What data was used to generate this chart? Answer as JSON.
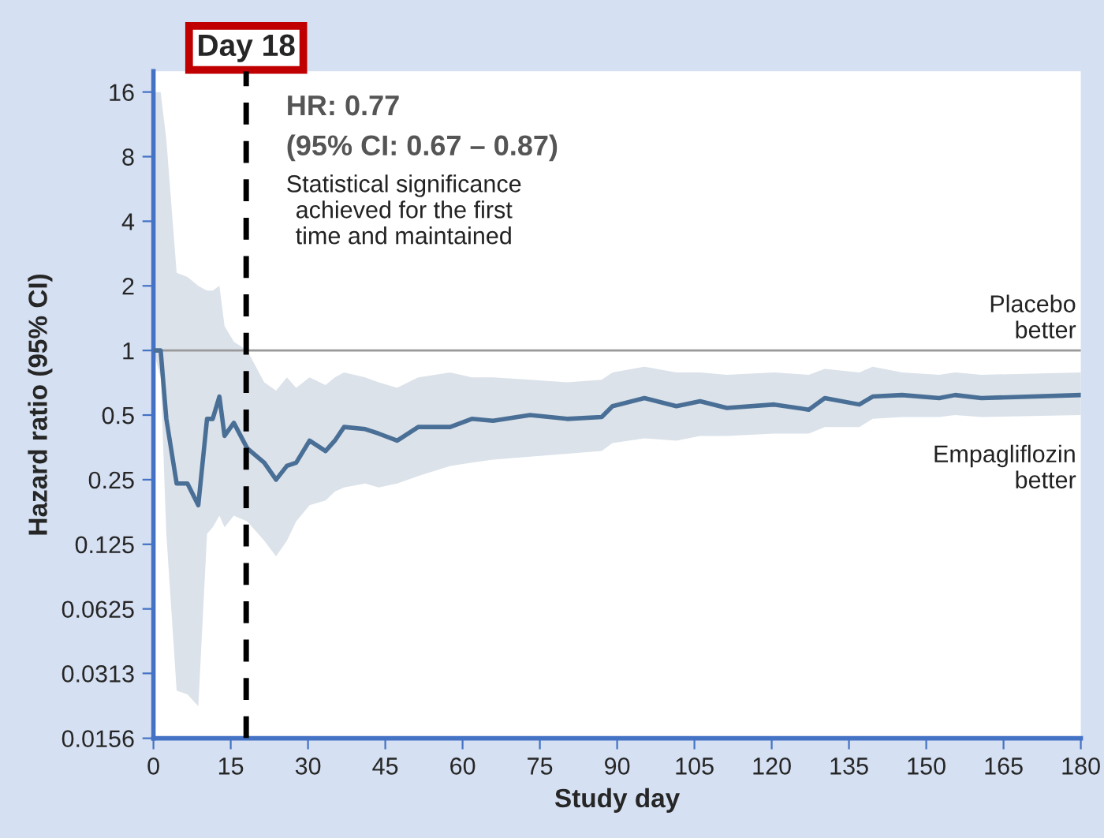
{
  "chart_data": {
    "type": "line",
    "xlabel": "Study day",
    "ylabel": "Hazard ratio (95% CI)",
    "log": "y",
    "xlim": [
      0,
      180
    ],
    "xticks": [
      0,
      15,
      30,
      45,
      60,
      75,
      90,
      105,
      120,
      135,
      150,
      165,
      180
    ],
    "ylim": [
      0.0156,
      20
    ],
    "yticks": [
      0.0156,
      0.0313,
      0.0625,
      0.125,
      0.25,
      0.5,
      1,
      2,
      4,
      8,
      16
    ],
    "grid": false,
    "legend": false,
    "marker": "none",
    "line_style": "solid",
    "series": [
      {
        "color": "#4a6f96",
        "x": [
          0,
          1.4,
          2.5,
          4.5,
          6.6,
          8.7,
          10.4,
          11.5,
          12.8,
          13.8,
          15.6,
          18.2,
          21.5,
          23.8,
          25.9,
          27.7,
          30.3,
          33.4,
          35.2,
          37,
          41.1,
          43.7,
          47.3,
          51.4,
          57.6,
          61.8,
          65.9,
          73.1,
          80.3,
          87,
          89.1,
          95.3,
          101.5,
          106.1,
          111.3,
          120.5,
          127.2,
          130.3,
          137,
          139.6,
          145.3,
          152.5,
          155.6,
          160.7,
          180
        ],
        "values": [
          1,
          1,
          0.48,
          0.24,
          0.24,
          0.19,
          0.48,
          0.48,
          0.61,
          0.4,
          0.46,
          0.35,
          0.3,
          0.25,
          0.29,
          0.3,
          0.38,
          0.34,
          0.38,
          0.44,
          0.43,
          0.41,
          0.38,
          0.44,
          0.44,
          0.48,
          0.47,
          0.5,
          0.48,
          0.49,
          0.55,
          0.6,
          0.55,
          0.58,
          0.54,
          0.56,
          0.53,
          0.6,
          0.56,
          0.61,
          0.62,
          0.6,
          0.62,
          0.6,
          0.62
        ],
        "lower": [
          1,
          0.75,
          0.14,
          0.026,
          0.025,
          0.022,
          0.14,
          0.15,
          0.17,
          0.15,
          0.17,
          0.16,
          0.13,
          0.11,
          0.13,
          0.16,
          0.19,
          0.2,
          0.22,
          0.23,
          0.24,
          0.23,
          0.24,
          0.26,
          0.29,
          0.3,
          0.31,
          0.32,
          0.33,
          0.34,
          0.37,
          0.39,
          0.38,
          0.4,
          0.4,
          0.41,
          0.41,
          0.44,
          0.44,
          0.48,
          0.49,
          0.49,
          0.5,
          0.49,
          0.5
        ],
        "upper": [
          16,
          16,
          9.6,
          2.3,
          2.2,
          2,
          1.9,
          1.9,
          2,
          1.3,
          1.1,
          1,
          0.71,
          0.65,
          0.75,
          0.67,
          0.75,
          0.69,
          0.75,
          0.79,
          0.75,
          0.71,
          0.67,
          0.75,
          0.79,
          0.75,
          0.75,
          0.73,
          0.71,
          0.73,
          0.79,
          0.84,
          0.79,
          0.79,
          0.77,
          0.79,
          0.77,
          0.82,
          0.79,
          0.84,
          0.79,
          0.77,
          0.79,
          0.77,
          0.79
        ]
      }
    ],
    "ref_lines": [
      {
        "axis": "y",
        "value": 1,
        "color": "#999999",
        "line_style": "solid"
      },
      {
        "axis": "x",
        "value": 18,
        "label": "Day 18",
        "color": "#000000",
        "line_style": "dashed"
      }
    ],
    "annotations": [
      "HR: 0.77",
      "(95% CI: 0.67 – 0.87)",
      "Statistical significance\nachieved for the first\ntime and maintained",
      "Placebo\nbetter",
      "Empagliflozin\nbetter"
    ]
  }
}
